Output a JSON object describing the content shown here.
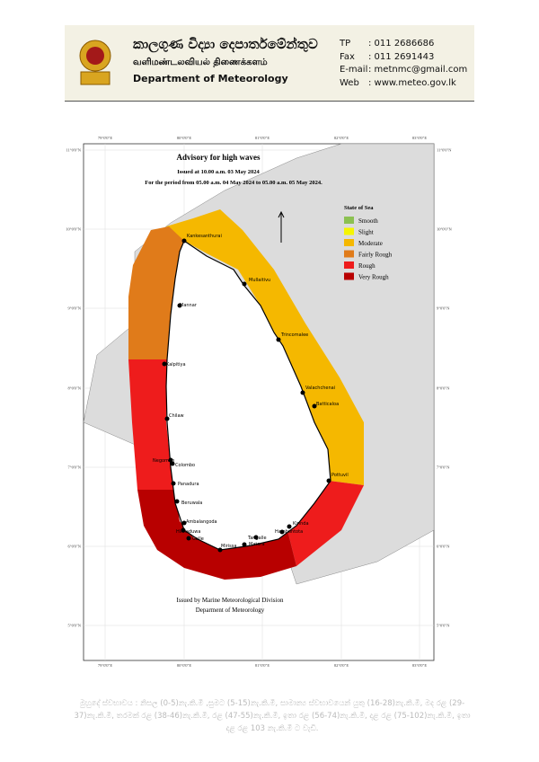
{
  "header": {
    "title_si": "කාලගුණ විද්‍යා දෙපාර්තමේන්තුව",
    "title_ta": "வளிமண்டலவியல் திணைக்களம்",
    "title_en": "Department of Meteorology",
    "contacts": [
      {
        "label": "TP",
        "value": ": 011 2686686"
      },
      {
        "label": "Fax",
        "value": ": 011 2691443"
      },
      {
        "label": "E-mail",
        "value": ": metnmc@gmail.com"
      },
      {
        "label": "Web",
        "value": ": www.meteo.gov.lk"
      }
    ]
  },
  "map": {
    "title": "Advisory for high waves",
    "issued": "Issued at 10.00 a.m. 03 May 2024",
    "period": "For the period from 05.00 a.m. 04 May 2024 to 05.00 a.m. 05 May 2024.",
    "footer_1": "Issued by Marine Meteorological Division",
    "footer_2": "Deparment of Meteorology",
    "lat_labels": [
      "11°0'0\"N",
      "10°0'0\"N",
      "9°0'0\"N",
      "8°0'0\"N",
      "7°0'0\"N",
      "6°0'0\"N",
      "5°0'0\"N"
    ],
    "lon_labels": [
      "79°0'0\"E",
      "80°0'0\"E",
      "81°0'0\"E",
      "82°0'0\"E",
      "83°0'0\"E"
    ],
    "legend": {
      "title": "State of Sea",
      "items": [
        {
          "label": "Smooth",
          "color": "#8cc152"
        },
        {
          "label": "Slight",
          "color": "#f5f500"
        },
        {
          "label": "Moderate",
          "color": "#f5b800"
        },
        {
          "label": "Fairly Rough",
          "color": "#e07b1a"
        },
        {
          "label": "Rough",
          "color": "#ee1c1c"
        },
        {
          "label": "Very Rough",
          "color": "#b80000"
        }
      ]
    },
    "cities": [
      "Kankesanthurai",
      "Mullaitivu",
      "Trincomalee",
      "Valachchenai",
      "Batticaloa",
      "Pottuvil",
      "Kirinda",
      "Hambantota",
      "Tangalle",
      "Matara",
      "Mirissa",
      "Galle",
      "Hikkaduwa",
      "Ambalangoda",
      "Beruwala",
      "Panadura",
      "Colombo",
      "Negombo",
      "Chilaw",
      "Kalpitiya",
      "Mannar"
    ]
  },
  "note": "මුහුදේ ස්වභාවය : නිසල (0-5)නැ.කි.මී ,සුමට (5-15)නැ.කි.මී, සාමාන්‍ය ස්වභාවයෙන් යුතු (16-28)නැ.කි.මී, මද රළ (29-37)නැ.කි.මී, තරමක් රළ (38-46)නැ.කි.මී, රළ (47-55)නැ.කි.මී, ඉතා රළ (56-74)නැ.කි.මී, දළ රළ (75-102)නැ.කි.මී, ඉතා දළ රළ 103 නැ.කි.මී ට වැඩි."
}
